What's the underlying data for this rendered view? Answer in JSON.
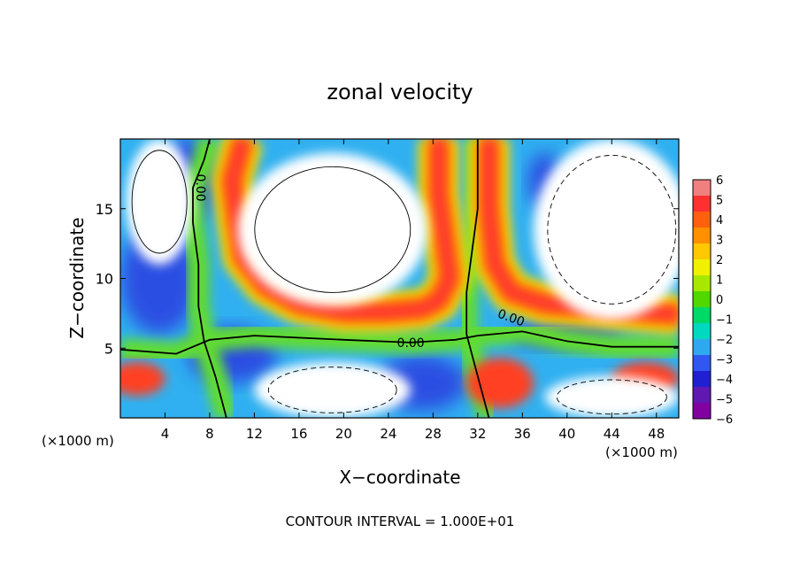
{
  "chart_data": {
    "type": "heatmap",
    "title": "zonal velocity",
    "xlabel": "X−coordinate",
    "ylabel": "Z−coordinate",
    "x_unit": "(×1000 m)",
    "x_unit_right": "(×1000 m)",
    "xlim": [
      0,
      50
    ],
    "ylim": [
      0,
      20
    ],
    "x_ticks": [
      "4",
      "8",
      "12",
      "16",
      "20",
      "24",
      "28",
      "32",
      "36",
      "40",
      "44",
      "48"
    ],
    "y_ticks": [
      "5",
      "10",
      "15"
    ],
    "footer": "CONTOUR INTERVAL = 1.000E+01",
    "contour_labels": [
      "0.00",
      "0.00",
      "0.00"
    ],
    "colorbar": {
      "range": [
        -6,
        6
      ],
      "labels": [
        "6",
        "5",
        "4",
        "3",
        "2",
        "1",
        "0",
        "−1",
        "−2",
        "−3",
        "−4",
        "−5",
        "−6"
      ],
      "colors": [
        "#f08080",
        "#ff3030",
        "#ff6010",
        "#ff9000",
        "#ffc800",
        "#f0f000",
        "#a8e800",
        "#50d800",
        "#00d868",
        "#00d8c0",
        "#30a8f0",
        "#3058f0",
        "#2020d0",
        "#6018b0",
        "#8000a0"
      ]
    },
    "zero_contour_lower": [
      [
        0,
        4.9
      ],
      [
        5,
        4.6
      ],
      [
        8,
        5.6
      ],
      [
        12,
        5.9
      ],
      [
        20,
        5.6
      ],
      [
        26,
        5.4
      ],
      [
        30,
        5.6
      ],
      [
        32,
        5.9
      ],
      [
        36,
        6.2
      ],
      [
        40,
        5.5
      ],
      [
        44,
        5.1
      ],
      [
        50,
        5.1
      ]
    ],
    "zero_contour_left": [
      [
        9.5,
        0
      ],
      [
        8.5,
        3
      ],
      [
        7.5,
        5.5
      ],
      [
        7,
        8
      ],
      [
        7,
        11
      ],
      [
        6.5,
        14
      ],
      [
        6.5,
        16.5
      ],
      [
        7.5,
        18.5
      ],
      [
        8,
        20
      ]
    ],
    "zero_contour_right": [
      [
        33,
        0
      ],
      [
        32,
        3
      ],
      [
        31,
        6
      ],
      [
        31,
        9
      ],
      [
        31.5,
        12
      ],
      [
        32,
        15
      ],
      [
        32,
        20
      ]
    ],
    "positive_regions": [
      {
        "shape": "band",
        "points": [
          [
            11,
            20
          ],
          [
            10,
            17
          ],
          [
            10.5,
            14
          ],
          [
            11,
            11.5
          ],
          [
            13,
            9.5
          ],
          [
            16,
            8.2
          ],
          [
            20,
            7.6
          ],
          [
            24,
            7.6
          ],
          [
            27,
            7.8
          ],
          [
            28.5,
            8.4
          ],
          [
            29.5,
            10
          ],
          [
            29,
            13
          ],
          [
            28.5,
            16
          ],
          [
            28.5,
            20
          ]
        ]
      },
      {
        "shape": "band",
        "points": [
          [
            33,
            20
          ],
          [
            33,
            15
          ],
          [
            33.5,
            11
          ],
          [
            35,
            9
          ],
          [
            38,
            8.2
          ],
          [
            44,
            7.8
          ],
          [
            50,
            7.4
          ]
        ]
      },
      {
        "shape": "blob",
        "cx": 1.5,
        "cy": 2.8,
        "rx": 2.5,
        "ry": 1.2
      },
      {
        "shape": "blob",
        "cx": 34,
        "cy": 2.5,
        "rx": 3,
        "ry": 1.8
      },
      {
        "shape": "blob",
        "cx": 47,
        "cy": 2.8,
        "rx": 3,
        "ry": 1.2
      }
    ],
    "negative_regions": [
      {
        "shape": "blob",
        "cx": 3.5,
        "cy": 10,
        "rx": 3.5,
        "ry": 4
      },
      {
        "shape": "blob",
        "cx": 6,
        "cy": 17,
        "rx": 2.5,
        "ry": 3
      },
      {
        "shape": "blob",
        "cx": 10,
        "cy": 4.5,
        "rx": 4,
        "ry": 2
      },
      {
        "shape": "blob",
        "cx": 27,
        "cy": 2.5,
        "rx": 4,
        "ry": 2
      },
      {
        "shape": "blob",
        "cx": 40,
        "cy": 6,
        "rx": 5,
        "ry": 1
      },
      {
        "shape": "blob",
        "cx": 38,
        "cy": 17,
        "rx": 1.5,
        "ry": 2
      }
    ],
    "white_regions": [
      {
        "cx": 19,
        "cy": 13.5,
        "rx": 8.5,
        "ry": 5.5
      },
      {
        "cx": 44,
        "cy": 13.5,
        "rx": 7,
        "ry": 6.5
      },
      {
        "cx": 3.5,
        "cy": 15.5,
        "rx": 3,
        "ry": 4.5
      },
      {
        "cx": 19,
        "cy": 2,
        "rx": 7,
        "ry": 2
      },
      {
        "cx": 44,
        "cy": 1.5,
        "rx": 6,
        "ry": 1.5
      }
    ]
  }
}
